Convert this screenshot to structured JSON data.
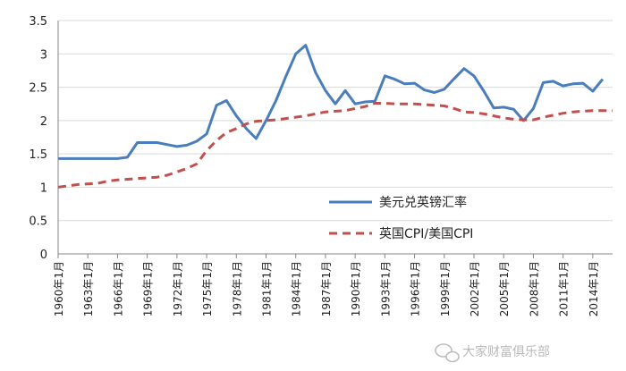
{
  "chart_data": {
    "type": "line",
    "title": "",
    "xlabel": "",
    "ylabel": "",
    "ylim": [
      0,
      3.5
    ],
    "yticks": [
      "0",
      "0.5",
      "1",
      "1.5",
      "2",
      "2.5",
      "3",
      "3.5"
    ],
    "x_start_year": 1960,
    "x_end_year": 2016,
    "x_ticks": [
      "1960年1月",
      "1963年1月",
      "1966年1月",
      "1969年1月",
      "1972年1月",
      "1975年1月",
      "1978年1月",
      "1981年1月",
      "1984年1月",
      "1987年1月",
      "1990年1月",
      "1993年1月",
      "1996年1月",
      "1999年1月",
      "2002年1月",
      "2005年1月",
      "2008年1月",
      "2011年1月",
      "2014年1月"
    ],
    "grid": "horizontal",
    "legend_position": "center-right",
    "series": [
      {
        "name": "美元兑英镑汇率",
        "style": "solid",
        "color": "#4a7ebb",
        "points": [
          [
            1960,
            1.43
          ],
          [
            1961,
            1.43
          ],
          [
            1962,
            1.43
          ],
          [
            1963,
            1.43
          ],
          [
            1964,
            1.43
          ],
          [
            1965,
            1.43
          ],
          [
            1966,
            1.43
          ],
          [
            1967,
            1.45
          ],
          [
            1968,
            1.67
          ],
          [
            1969,
            1.67
          ],
          [
            1970,
            1.67
          ],
          [
            1971,
            1.64
          ],
          [
            1972,
            1.61
          ],
          [
            1973,
            1.63
          ],
          [
            1974,
            1.69
          ],
          [
            1975,
            1.8
          ],
          [
            1976,
            2.23
          ],
          [
            1977,
            2.3
          ],
          [
            1978,
            2.07
          ],
          [
            1979,
            1.88
          ],
          [
            1980,
            1.73
          ],
          [
            1981,
            2.0
          ],
          [
            1982,
            2.3
          ],
          [
            1983,
            2.66
          ],
          [
            1984,
            3.0
          ],
          [
            1985,
            3.13
          ],
          [
            1986,
            2.72
          ],
          [
            1987,
            2.45
          ],
          [
            1988,
            2.25
          ],
          [
            1989,
            2.45
          ],
          [
            1990,
            2.25
          ],
          [
            1991,
            2.28
          ],
          [
            1992,
            2.29
          ],
          [
            1993,
            2.67
          ],
          [
            1994,
            2.62
          ],
          [
            1995,
            2.55
          ],
          [
            1996,
            2.56
          ],
          [
            1997,
            2.46
          ],
          [
            1998,
            2.42
          ],
          [
            1999,
            2.47
          ],
          [
            2000,
            2.63
          ],
          [
            2001,
            2.78
          ],
          [
            2002,
            2.67
          ],
          [
            2003,
            2.44
          ],
          [
            2004,
            2.19
          ],
          [
            2005,
            2.2
          ],
          [
            2006,
            2.17
          ],
          [
            2007,
            2.0
          ],
          [
            2008,
            2.18
          ],
          [
            2009,
            2.57
          ],
          [
            2010,
            2.59
          ],
          [
            2011,
            2.52
          ],
          [
            2012,
            2.55
          ],
          [
            2013,
            2.56
          ],
          [
            2014,
            2.44
          ],
          [
            2015,
            2.62
          ]
        ]
      },
      {
        "name": "英国CPI/美国CPI",
        "style": "dashed",
        "color": "#c0504d",
        "points": [
          [
            1960,
            1.0
          ],
          [
            1961,
            1.02
          ],
          [
            1962,
            1.04
          ],
          [
            1963,
            1.05
          ],
          [
            1964,
            1.06
          ],
          [
            1965,
            1.09
          ],
          [
            1966,
            1.11
          ],
          [
            1967,
            1.12
          ],
          [
            1968,
            1.13
          ],
          [
            1969,
            1.14
          ],
          [
            1970,
            1.15
          ],
          [
            1971,
            1.18
          ],
          [
            1972,
            1.23
          ],
          [
            1973,
            1.28
          ],
          [
            1974,
            1.35
          ],
          [
            1975,
            1.55
          ],
          [
            1976,
            1.7
          ],
          [
            1977,
            1.82
          ],
          [
            1978,
            1.88
          ],
          [
            1979,
            1.95
          ],
          [
            1980,
            1.99
          ],
          [
            1981,
            2.0
          ],
          [
            1982,
            2.01
          ],
          [
            1983,
            2.03
          ],
          [
            1984,
            2.05
          ],
          [
            1985,
            2.07
          ],
          [
            1986,
            2.1
          ],
          [
            1987,
            2.13
          ],
          [
            1988,
            2.14
          ],
          [
            1989,
            2.15
          ],
          [
            1990,
            2.18
          ],
          [
            1991,
            2.21
          ],
          [
            1992,
            2.26
          ],
          [
            1993,
            2.26
          ],
          [
            1994,
            2.25
          ],
          [
            1995,
            2.25
          ],
          [
            1996,
            2.25
          ],
          [
            1997,
            2.24
          ],
          [
            1998,
            2.23
          ],
          [
            1999,
            2.22
          ],
          [
            2000,
            2.18
          ],
          [
            2001,
            2.13
          ],
          [
            2002,
            2.12
          ],
          [
            2003,
            2.1
          ],
          [
            2004,
            2.07
          ],
          [
            2005,
            2.04
          ],
          [
            2006,
            2.02
          ],
          [
            2007,
            2.01
          ],
          [
            2008,
            2.01
          ],
          [
            2009,
            2.05
          ],
          [
            2010,
            2.08
          ],
          [
            2011,
            2.11
          ],
          [
            2012,
            2.13
          ],
          [
            2013,
            2.14
          ],
          [
            2014,
            2.15
          ],
          [
            2015,
            2.15
          ],
          [
            2016,
            2.15
          ]
        ]
      }
    ]
  },
  "watermark": {
    "icon": "wechat-icon",
    "text": "大家财富俱乐部"
  }
}
